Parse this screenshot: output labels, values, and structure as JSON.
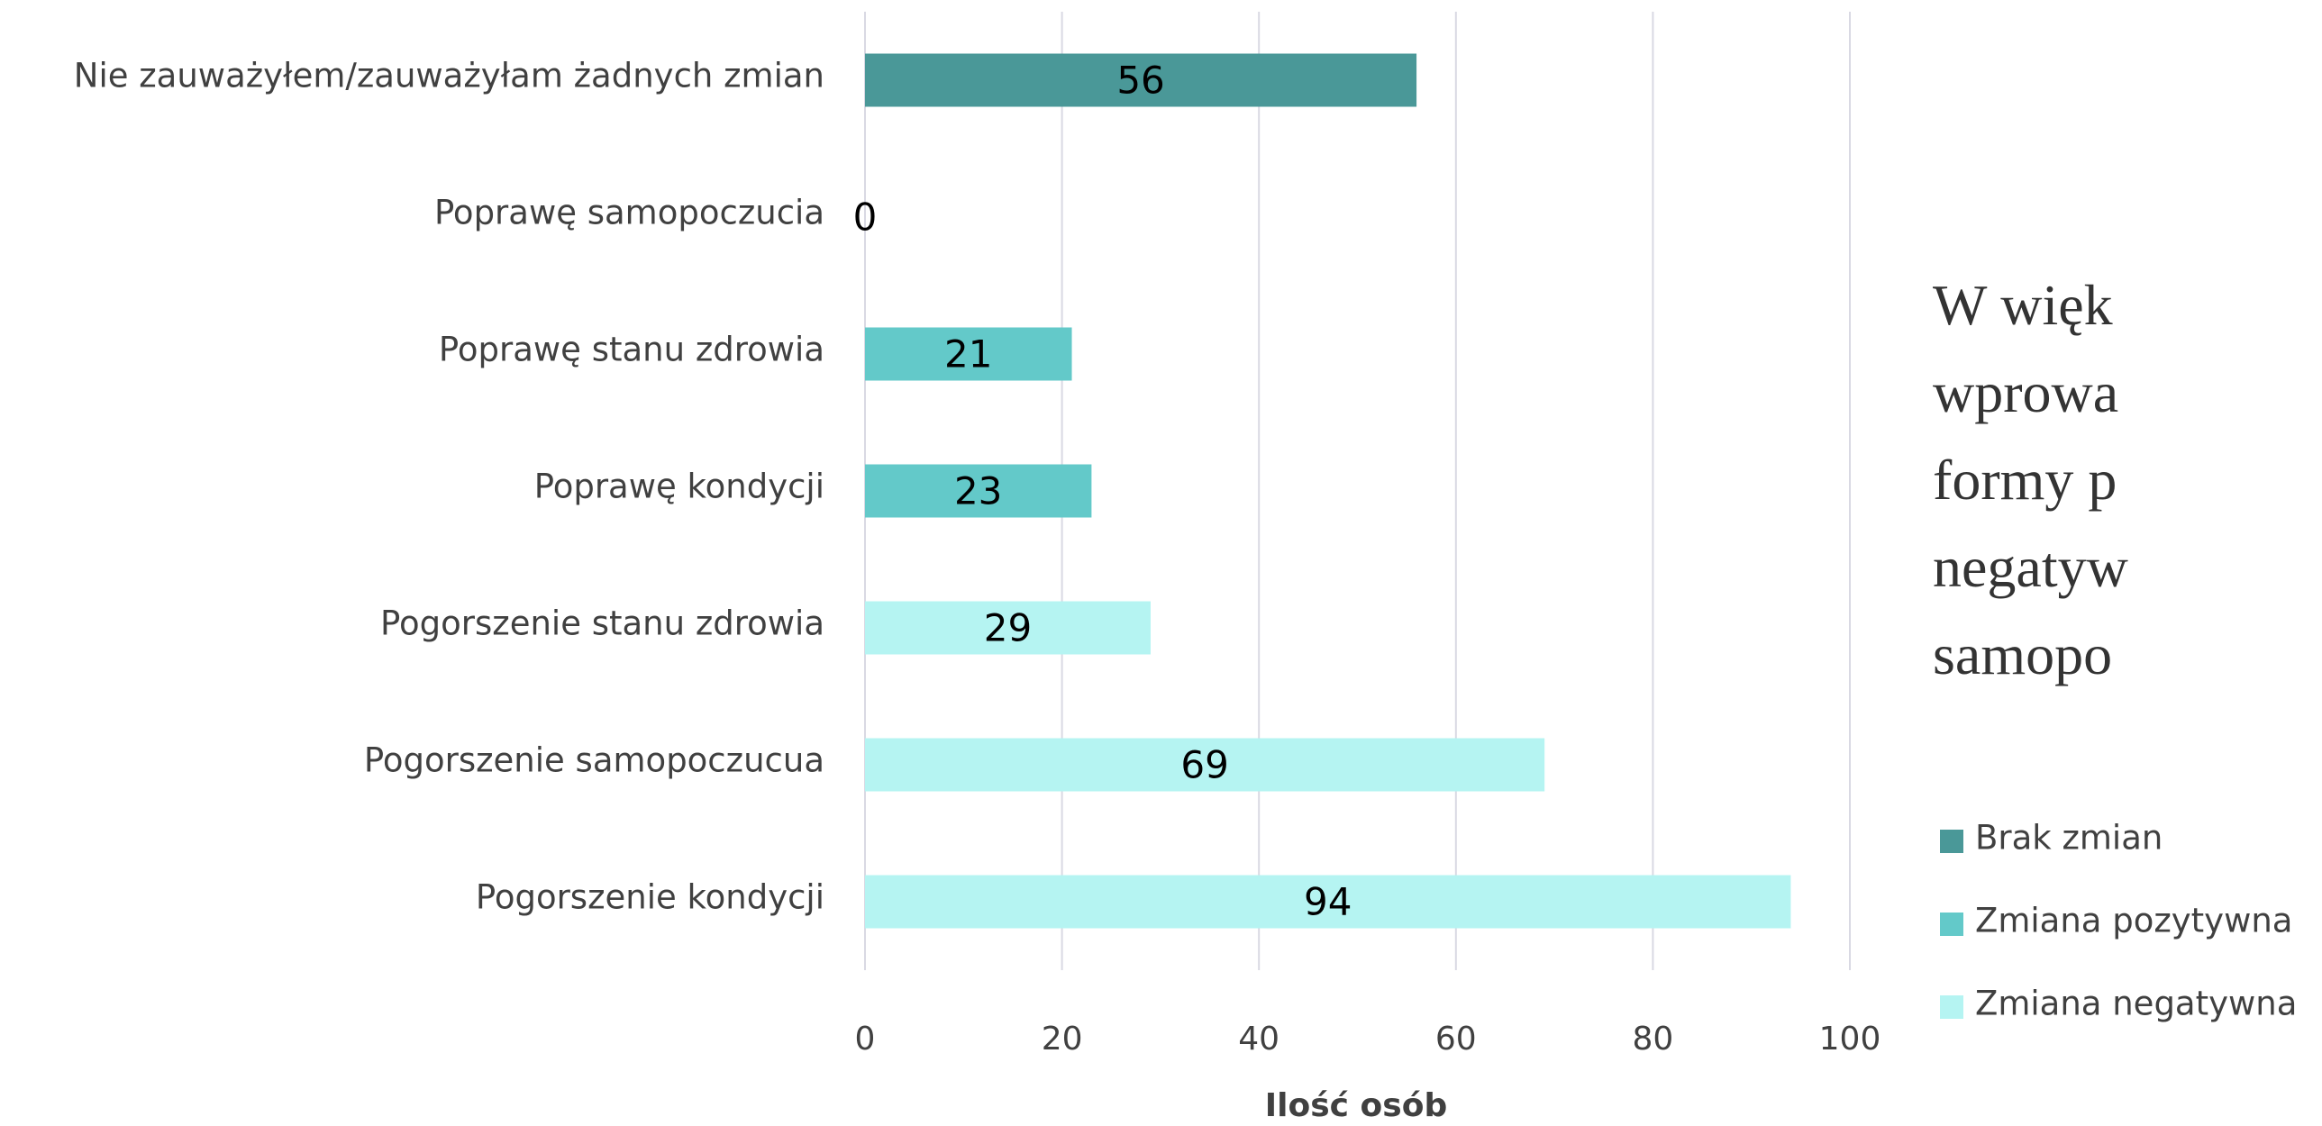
{
  "chart_data": {
    "type": "bar",
    "orientation": "horizontal",
    "categories": [
      "Nie zauważyłem/zauważyłam żadnych zmian",
      "Poprawę samopoczucia",
      "Poprawę stanu zdrowia",
      "Poprawę kondycji",
      "Pogorszenie stanu zdrowia",
      "Pogorszenie samopoczucua",
      "Pogorszenie kondycji"
    ],
    "series": [
      {
        "name": "Brak zmian",
        "color": "#4a9898",
        "values": [
          56,
          null,
          null,
          null,
          null,
          null,
          null
        ]
      },
      {
        "name": "Zmiana pozytywna",
        "color": "#63c9c9",
        "values": [
          null,
          0,
          21,
          23,
          null,
          null,
          null
        ]
      },
      {
        "name": "Zmiana negatywna",
        "color": "#b5f4f2",
        "values": [
          null,
          null,
          null,
          null,
          29,
          69,
          94
        ]
      }
    ],
    "xlabel": "Ilość osób",
    "xlim": [
      0,
      100
    ],
    "xticks": [
      0,
      20,
      40,
      60,
      80,
      100
    ],
    "grid": true,
    "legend": "right"
  },
  "side_text": [
    "W więk",
    "wprowa",
    "formy p",
    "negatyw",
    "samopo"
  ]
}
